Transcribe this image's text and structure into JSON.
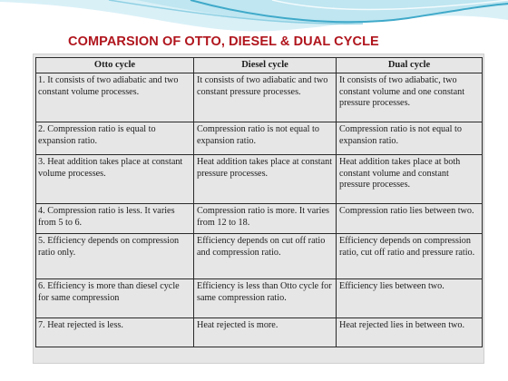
{
  "slide": {
    "title": "COMPARSION OF OTTO, DIESEL & DUAL CYCLE"
  },
  "table": {
    "headers": [
      "Otto cycle",
      "Diesel cycle",
      "Dual cycle"
    ],
    "rows": [
      [
        "1. It consists of two adiabatic and two constant volume processes.",
        "It consists of two adiabatic and two constant pressure processes.",
        "It consists of two adiabatic, two constant volume and one constant pressure processes."
      ],
      [
        "2. Compression ratio is equal to expansion ratio.",
        "Compression ratio is not equal to expansion ratio.",
        "Compression ratio is not equal to expansion ratio."
      ],
      [
        "3. Heat addition takes place at constant volume processes.",
        "Heat addition takes place at constant pressure processes.",
        "Heat addition takes place at both constant volume and constant pressure processes."
      ],
      [
        "4. Compression ratio is less. It varies from 5 to 6.",
        "Compression ratio is more. It varies from 12 to 18.",
        "Compression ratio lies between two."
      ],
      [
        "5. Efficiency depends on compression ratio only.",
        "Efficiency depends on cut off ratio and compression ratio.",
        "Efficiency depends on compression ratio, cut off ratio and pressure ratio."
      ],
      [
        "6. Efficiency is more than diesel cycle for same compression",
        "Efficiency is less than Otto cycle for same compression ratio.",
        "Efficiency lies between two."
      ],
      [
        "7. Heat rejected is less.",
        "Heat rejected is more.",
        "Heat rejected lies in between two."
      ]
    ]
  },
  "colors": {
    "title": "#b0151d",
    "swoosh_dark": "#3fa9c9",
    "swoosh_light": "#bfe6f1",
    "scan_background": "#e6e6e6"
  }
}
